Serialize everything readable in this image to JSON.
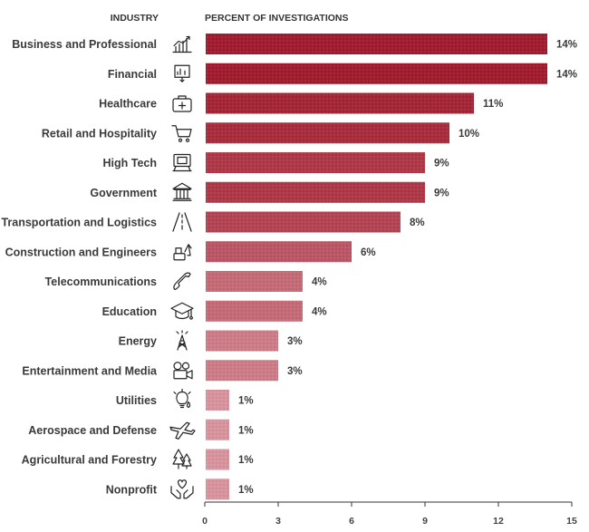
{
  "chart_data": {
    "type": "bar",
    "orientation": "horizontal",
    "header_left": "INDUSTRY",
    "header_right": "PERCENT OF INVESTIGATIONS",
    "categories": [
      "Business and Professional",
      "Financial",
      "Healthcare",
      "Retail and Hospitality",
      "High Tech",
      "Government",
      "Transportation and Logistics",
      "Construction and Engineers",
      "Telecommunications",
      "Education",
      "Energy",
      "Entertainment and Media",
      "Utilities",
      "Aerospace and Defense",
      "Agricultural and Forestry",
      "Nonprofit"
    ],
    "values": [
      14,
      14,
      11,
      10,
      9,
      9,
      8,
      6,
      4,
      4,
      3,
      3,
      1,
      1,
      1,
      1
    ],
    "value_labels": [
      "14%",
      "14%",
      "11%",
      "10%",
      "9%",
      "9%",
      "8%",
      "6%",
      "4%",
      "4%",
      "3%",
      "3%",
      "1%",
      "1%",
      "1%",
      "1%"
    ],
    "icons": [
      "bar-chart-icon",
      "money-chart-icon",
      "medical-kit-icon",
      "shopping-cart-icon",
      "computer-chip-icon",
      "government-building-icon",
      "road-icon",
      "excavator-icon",
      "telephone-icon",
      "graduation-cap-icon",
      "power-tower-icon",
      "video-camera-icon",
      "lightbulb-drop-icon",
      "airplane-icon",
      "trees-icon",
      "heart-hands-icon"
    ],
    "colors": [
      "#a01c2e",
      "#a01c2e",
      "#a42636",
      "#a82c3c",
      "#ae3847",
      "#ae3847",
      "#b34453",
      "#bb5664",
      "#c56b77",
      "#c56b77",
      "#cd7c87",
      "#cd7c87",
      "#d8949d",
      "#d8949d",
      "#d8949d",
      "#d8949d"
    ],
    "xlim": [
      0,
      15
    ],
    "xticks": [
      "0",
      "3",
      "6",
      "9",
      "12",
      "15"
    ],
    "grid": false,
    "legend": "none"
  }
}
